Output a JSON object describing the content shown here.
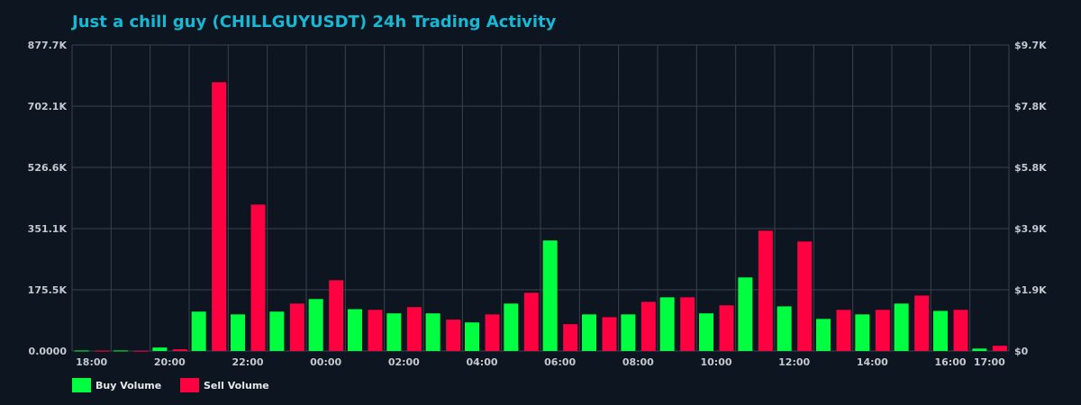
{
  "chart_data": {
    "type": "bar",
    "title": "Just a chill guy (CHILLGUYUSDT) 24h Trading Activity",
    "categories": [
      "18:00",
      "19:00",
      "20:00",
      "21:00",
      "22:00",
      "23:00",
      "00:00",
      "01:00",
      "02:00",
      "03:00",
      "04:00",
      "05:00",
      "06:00",
      "07:00",
      "08:00",
      "09:00",
      "10:00",
      "11:00",
      "12:00",
      "13:00",
      "14:00",
      "15:00",
      "16:00",
      "17:00"
    ],
    "x_tick_labels": [
      "18:00",
      "20:00",
      "22:00",
      "00:00",
      "02:00",
      "04:00",
      "06:00",
      "08:00",
      "10:00",
      "12:00",
      "14:00",
      "16:00",
      "17:00"
    ],
    "series": [
      {
        "name": "Buy Volume",
        "color": "#00ff41",
        "values": [
          1500,
          1500,
          10000,
          113000,
          105000,
          113000,
          149000,
          120000,
          108000,
          108000,
          82000,
          136000,
          317000,
          105000,
          105000,
          154000,
          108000,
          211000,
          128000,
          92000,
          105000,
          136000,
          115000,
          7000
        ]
      },
      {
        "name": "Sell Volume",
        "color": "#ff0040",
        "values": [
          1000,
          800,
          5000,
          771000,
          420000,
          136000,
          203000,
          118000,
          126000,
          90000,
          105000,
          167000,
          77000,
          97000,
          141000,
          154000,
          131000,
          345000,
          314000,
          118000,
          118000,
          159000,
          118000,
          15000
        ]
      }
    ],
    "ylim": [
      0,
      877700
    ],
    "y_tick_labels": [
      "0.0000",
      "175.5K",
      "351.1K",
      "526.6K",
      "702.1K",
      "877.7K"
    ],
    "y2_tick_labels": [
      "$0",
      "$1.9K",
      "$3.9K",
      "$5.8K",
      "$7.8K",
      "$9.7K"
    ],
    "grid": true,
    "legend": "bottom-left"
  }
}
